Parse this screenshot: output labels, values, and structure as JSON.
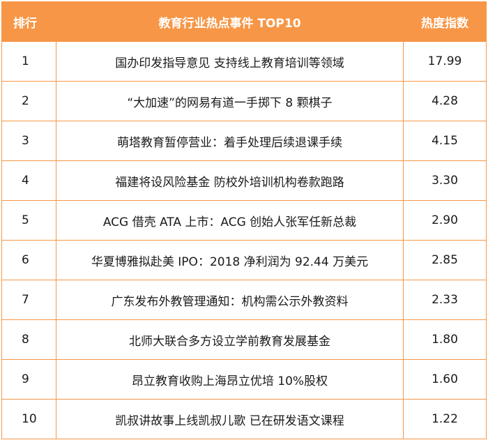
{
  "chart_data": {
    "type": "table",
    "columns": [
      "排行",
      "教育行业热点事件 TOP10",
      "热度指数"
    ],
    "rows": [
      {
        "rank": "1",
        "event": "国办印发指导意见 支持线上教育培训等领域",
        "score": "17.99"
      },
      {
        "rank": "2",
        "event": "“大加速”的网易有道一手掷下 8 颗棋子",
        "score": "4.28"
      },
      {
        "rank": "3",
        "event": "萌塔教育暂停营业：着手处理后续退课手续",
        "score": "4.15"
      },
      {
        "rank": "4",
        "event": "福建将设风险基金 防校外培训机构卷款跑路",
        "score": "3.30"
      },
      {
        "rank": "5",
        "event": "ACG 借壳 ATA 上市：ACG 创始人张军任新总裁",
        "score": "2.90"
      },
      {
        "rank": "6",
        "event": "华夏博雅拟赴美 IPO：2018 净利润为 92.44 万美元",
        "score": "2.85"
      },
      {
        "rank": "7",
        "event": "广东发布外教管理通知：机构需公示外教资料",
        "score": "2.33"
      },
      {
        "rank": "8",
        "event": "北师大联合多方设立学前教育发展基金",
        "score": "1.80"
      },
      {
        "rank": "9",
        "event": "昂立教育收购上海昂立优培 10%股权",
        "score": "1.60"
      },
      {
        "rank": "10",
        "event": "凯叔讲故事上线凯叔儿歌 已在研发语文课程",
        "score": "1.22"
      }
    ]
  },
  "colors": {
    "header_bg": "#f79646",
    "header_text": "#ffffff",
    "border": "#f79646",
    "body_text": "#1a1a1a"
  }
}
